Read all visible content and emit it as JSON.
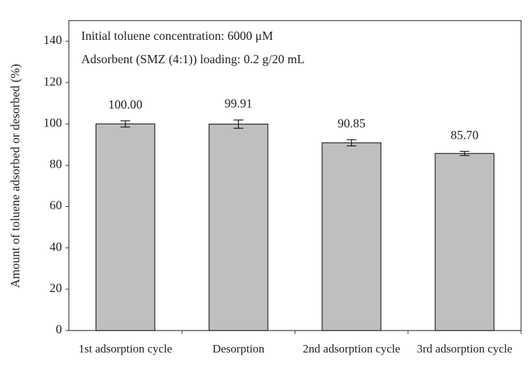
{
  "chart_data": {
    "type": "bar",
    "y_label": "Amount of toluene adsorbed or desorbed (%)",
    "annotations": [
      "Initial toluene concentration: 6000 μM",
      "Adsorbent (SMZ (4:1)) loading: 0.2 g/20 mL"
    ],
    "categories": [
      "1st adsorption cycle",
      "Desorption",
      "2nd adsorption cycle",
      "3rd adsorption cycle"
    ],
    "values": [
      100,
      99.91,
      90.85,
      85.7
    ],
    "value_labels": [
      "100.00",
      "99.91",
      "90.85",
      "85.70"
    ],
    "errors": [
      1.5,
      2,
      1.5,
      1
    ],
    "color": "#bfbfbf",
    "ylim": [
      0,
      150
    ],
    "yticks": [
      0,
      20,
      40,
      60,
      80,
      100,
      120,
      140
    ]
  }
}
